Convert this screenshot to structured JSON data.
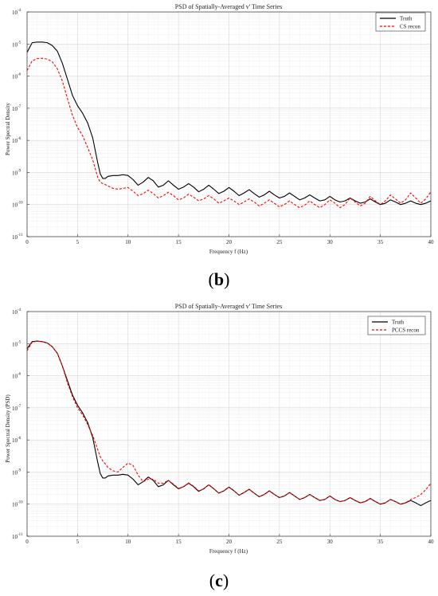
{
  "panels": [
    {
      "panel_label": {
        "open": "(",
        "letter": "b",
        "close": ")"
      },
      "chart_data": {
        "type": "line",
        "title": "PSD of Spatially-Averaged v' Time Series",
        "xlabel": "Frequency f (Hz)",
        "ylabel": "Power Spectral Density",
        "xlim": [
          0,
          40
        ],
        "ylim_log10": [
          -11,
          -4
        ],
        "yscale": "log",
        "grid": true,
        "legend_position": "top-right",
        "x_ticks": [
          "0",
          "5",
          "10",
          "15",
          "20",
          "25",
          "30",
          "35",
          "40"
        ],
        "y_ticks": [
          {
            "base": "10",
            "exp": "-4"
          },
          {
            "base": "10",
            "exp": "-5"
          },
          {
            "base": "10",
            "exp": "-6"
          },
          {
            "base": "10",
            "exp": "-7"
          },
          {
            "base": "10",
            "exp": "-8"
          },
          {
            "base": "10",
            "exp": "-9"
          },
          {
            "base": "10",
            "exp": "-10"
          },
          {
            "base": "10",
            "exp": "-11"
          }
        ],
        "series": [
          {
            "name": "Truth",
            "color": "#000000",
            "style": "solid",
            "x": [
              0,
              0.5,
              1,
              1.5,
              2,
              2.5,
              3,
              3.5,
              4,
              4.5,
              5,
              5.5,
              6,
              6.5,
              7,
              7.25,
              7.5,
              7.75,
              8,
              8.5,
              9,
              9.5,
              10,
              10.5,
              11,
              11.5,
              12,
              12.5,
              13,
              13.5,
              14,
              14.5,
              15,
              15.5,
              16,
              16.5,
              17,
              17.5,
              18,
              18.5,
              19,
              19.5,
              20,
              20.5,
              21,
              21.5,
              22,
              22.5,
              23,
              23.5,
              24,
              24.5,
              25,
              25.5,
              26,
              26.5,
              27,
              27.5,
              28,
              28.5,
              29,
              29.5,
              30,
              30.5,
              31,
              31.5,
              32,
              32.5,
              33,
              33.5,
              34,
              34.5,
              35,
              35.5,
              36,
              36.5,
              37,
              37.5,
              38,
              38.5,
              39,
              39.5,
              40
            ],
            "y": [
              5.5e-06,
              1.1e-05,
              1.15e-05,
              1.15e-05,
              1.1e-05,
              9e-06,
              6e-06,
              2.5e-06,
              8e-07,
              2.5e-07,
              1.2e-07,
              7e-08,
              3.5e-08,
              1.2e-08,
              2e-09,
              9e-10,
              6.5e-10,
              6.5e-10,
              7.5e-10,
              8e-10,
              8e-10,
              8.5e-10,
              8e-10,
              6e-10,
              4e-10,
              5e-10,
              7e-10,
              5.5e-10,
              3.5e-10,
              4e-10,
              5.5e-10,
              4e-10,
              3e-10,
              3.5e-10,
              4.5e-10,
              3.5e-10,
              2.5e-10,
              3e-10,
              4e-10,
              3e-10,
              2.2e-10,
              2.6e-10,
              3.4e-10,
              2.6e-10,
              1.9e-10,
              2.3e-10,
              2.9e-10,
              2.2e-10,
              1.7e-10,
              2e-10,
              2.6e-10,
              2e-10,
              1.6e-10,
              1.8e-10,
              2.3e-10,
              1.8e-10,
              1.4e-10,
              1.6e-10,
              2e-10,
              1.6e-10,
              1.3e-10,
              1.4e-10,
              1.8e-10,
              1.4e-10,
              1.2e-10,
              1.3e-10,
              1.6e-10,
              1.3e-10,
              1.1e-10,
              1.2e-10,
              1.5e-10,
              1.2e-10,
              1e-10,
              1.1e-10,
              1.4e-10,
              1.2e-10,
              1e-10,
              1.1e-10,
              1.3e-10,
              1.1e-10,
              1e-10,
              1.1e-10,
              1.3e-10
            ]
          },
          {
            "name": "CS recon",
            "color": "#ff0000",
            "style": "dashed",
            "x": [
              0,
              0.5,
              1,
              1.5,
              2,
              2.5,
              3,
              3.5,
              4,
              4.5,
              5,
              5.5,
              6,
              6.5,
              7,
              7.25,
              7.5,
              7.75,
              8,
              8.5,
              9,
              9.5,
              10,
              10.5,
              11,
              11.5,
              12,
              12.5,
              13,
              13.5,
              14,
              14.5,
              15,
              15.5,
              16,
              16.5,
              17,
              17.5,
              18,
              18.5,
              19,
              19.5,
              20,
              20.5,
              21,
              21.5,
              22,
              22.5,
              23,
              23.5,
              24,
              24.5,
              25,
              25.5,
              26,
              26.5,
              27,
              27.5,
              28,
              28.5,
              29,
              29.5,
              30,
              30.5,
              31,
              31.5,
              32,
              32.5,
              33,
              33.5,
              34,
              34.5,
              35,
              35.5,
              36,
              36.5,
              37,
              37.5,
              38,
              38.5,
              39,
              39.5,
              40
            ],
            "y": [
              1.5e-06,
              3e-06,
              3.5e-06,
              3.6e-06,
              3.4e-06,
              2.8e-06,
              1.7e-06,
              7e-07,
              2e-07,
              6e-08,
              2.5e-08,
              1.4e-08,
              6e-09,
              2.5e-09,
              7e-10,
              5e-10,
              4.5e-10,
              4.2e-10,
              3.8e-10,
              3.2e-10,
              3e-10,
              3.2e-10,
              3.4e-10,
              2.6e-10,
              1.9e-10,
              2.2e-10,
              2.8e-10,
              2.2e-10,
              1.6e-10,
              1.9e-10,
              2.4e-10,
              1.9e-10,
              1.4e-10,
              1.6e-10,
              2.1e-10,
              1.7e-10,
              1.3e-10,
              1.5e-10,
              1.9e-10,
              1.5e-10,
              1.1e-10,
              1.3e-10,
              1.6e-10,
              1.3e-10,
              1e-10,
              1.2e-10,
              1.5e-10,
              1.2e-10,
              9e-11,
              1.1e-10,
              1.4e-10,
              1.1e-10,
              8.5e-11,
              1e-10,
              1.3e-10,
              1e-10,
              8e-11,
              9.5e-11,
              1.3e-10,
              1e-10,
              8e-11,
              1e-10,
              1.4e-10,
              1.1e-10,
              8e-11,
              1e-10,
              1.6e-10,
              1.2e-10,
              9e-11,
              1.1e-10,
              1.8e-10,
              1.3e-10,
              1e-10,
              1.3e-10,
              2e-10,
              1.5e-10,
              1.1e-10,
              1.4e-10,
              2.3e-10,
              1.6e-10,
              1.1e-10,
              1.5e-10,
              2.5e-10
            ]
          }
        ]
      }
    },
    {
      "panel_label": {
        "open": "(",
        "letter": "c",
        "close": ")"
      },
      "chart_data": {
        "type": "line",
        "title": "PSD of Spatially-Averaged v' Time Series",
        "xlabel": "Frequency f (Hz)",
        "ylabel": "Power Spectral Density (PSD)",
        "xlim": [
          0,
          40
        ],
        "ylim_log10": [
          -11,
          -4
        ],
        "yscale": "log",
        "grid": true,
        "legend_position": "top-right",
        "x_ticks": [
          "0",
          "5",
          "10",
          "15",
          "20",
          "25",
          "30",
          "35",
          "40"
        ],
        "y_ticks": [
          {
            "base": "10",
            "exp": "-4"
          },
          {
            "base": "10",
            "exp": "-5"
          },
          {
            "base": "10",
            "exp": "-6"
          },
          {
            "base": "10",
            "exp": "-7"
          },
          {
            "base": "10",
            "exp": "-8"
          },
          {
            "base": "10",
            "exp": "-9"
          },
          {
            "base": "10",
            "exp": "-10"
          },
          {
            "base": "10",
            "exp": "-11"
          }
        ],
        "series": [
          {
            "name": "Truth",
            "color": "#000000",
            "style": "solid",
            "x": [
              0,
              0.5,
              1,
              1.5,
              2,
              2.5,
              3,
              3.5,
              4,
              4.5,
              5,
              5.5,
              6,
              6.5,
              7,
              7.25,
              7.5,
              7.75,
              8,
              8.5,
              9,
              9.5,
              10,
              10.5,
              11,
              11.5,
              12,
              12.5,
              13,
              13.5,
              14,
              14.5,
              15,
              15.5,
              16,
              16.5,
              17,
              17.5,
              18,
              18.5,
              19,
              19.5,
              20,
              20.5,
              21,
              21.5,
              22,
              22.5,
              23,
              23.5,
              24,
              24.5,
              25,
              25.5,
              26,
              26.5,
              27,
              27.5,
              28,
              28.5,
              29,
              29.5,
              30,
              30.5,
              31,
              31.5,
              32,
              32.5,
              33,
              33.5,
              34,
              34.5,
              35,
              35.5,
              36,
              36.5,
              37,
              37.5,
              38,
              38.5,
              39,
              39.5,
              40
            ],
            "y": [
              7e-06,
              1.15e-05,
              1.2e-05,
              1.15e-05,
              1.05e-05,
              8e-06,
              5e-06,
              2e-06,
              7e-07,
              2.5e-07,
              1.2e-07,
              7e-08,
              3.5e-08,
              1.2e-08,
              2e-09,
              9e-10,
              6.5e-10,
              6.5e-10,
              7.5e-10,
              8e-10,
              8e-10,
              8.5e-10,
              8e-10,
              6e-10,
              4e-10,
              5e-10,
              7e-10,
              5.5e-10,
              3.5e-10,
              4e-10,
              5.5e-10,
              4e-10,
              3e-10,
              3.5e-10,
              4.5e-10,
              3.5e-10,
              2.5e-10,
              3e-10,
              4e-10,
              3e-10,
              2.2e-10,
              2.6e-10,
              3.4e-10,
              2.6e-10,
              1.9e-10,
              2.3e-10,
              2.9e-10,
              2.2e-10,
              1.7e-10,
              2e-10,
              2.6e-10,
              2e-10,
              1.6e-10,
              1.8e-10,
              2.3e-10,
              1.8e-10,
              1.4e-10,
              1.6e-10,
              2e-10,
              1.6e-10,
              1.3e-10,
              1.4e-10,
              1.8e-10,
              1.4e-10,
              1.2e-10,
              1.3e-10,
              1.6e-10,
              1.3e-10,
              1.1e-10,
              1.2e-10,
              1.5e-10,
              1.2e-10,
              1e-10,
              1.1e-10,
              1.4e-10,
              1.2e-10,
              1e-10,
              1.1e-10,
              1.3e-10,
              1.1e-10,
              9e-11,
              1.1e-10,
              1.3e-10
            ]
          },
          {
            "name": "PCCS recon",
            "color": "#ff0000",
            "style": "dashed",
            "x": [
              0,
              0.5,
              1,
              1.5,
              2,
              2.5,
              3,
              3.5,
              4,
              4.5,
              5,
              5.5,
              6,
              6.5,
              7,
              7.25,
              7.5,
              7.75,
              8,
              8.5,
              9,
              9.5,
              10,
              10.5,
              11,
              11.5,
              12,
              12.5,
              13,
              13.5,
              14,
              14.5,
              15,
              15.5,
              16,
              16.5,
              17,
              17.5,
              18,
              18.5,
              19,
              19.5,
              20,
              20.5,
              21,
              21.5,
              22,
              22.5,
              23,
              23.5,
              24,
              24.5,
              25,
              25.5,
              26,
              26.5,
              27,
              27.5,
              28,
              28.5,
              29,
              29.5,
              30,
              30.5,
              31,
              31.5,
              32,
              32.5,
              33,
              33.5,
              34,
              34.5,
              35,
              35.5,
              36,
              36.5,
              37,
              37.5,
              38,
              38.5,
              39,
              39.5,
              40
            ],
            "y": [
              6e-06,
              1.1e-05,
              1.2e-05,
              1.15e-05,
              1.05e-05,
              8e-06,
              5e-06,
              2e-06,
              6e-07,
              2.2e-07,
              1e-07,
              6e-08,
              3e-08,
              1.4e-08,
              5e-09,
              3e-09,
              2.2e-09,
              1.8e-09,
              1.4e-09,
              1.1e-09,
              1e-09,
              1.4e-09,
              1.9e-09,
              1.6e-09,
              8e-10,
              5e-10,
              6e-10,
              6e-10,
              4.5e-10,
              4.5e-10,
              5.5e-10,
              4.2e-10,
              3.1e-10,
              3.5e-10,
              4.6e-10,
              3.6e-10,
              2.6e-10,
              3e-10,
              4e-10,
              3e-10,
              2.2e-10,
              2.6e-10,
              3.4e-10,
              2.6e-10,
              1.9e-10,
              2.3e-10,
              2.9e-10,
              2.2e-10,
              1.7e-10,
              2e-10,
              2.6e-10,
              2e-10,
              1.6e-10,
              1.8e-10,
              2.3e-10,
              1.8e-10,
              1.4e-10,
              1.6e-10,
              2e-10,
              1.6e-10,
              1.3e-10,
              1.4e-10,
              1.8e-10,
              1.4e-10,
              1.2e-10,
              1.3e-10,
              1.6e-10,
              1.3e-10,
              1.1e-10,
              1.2e-10,
              1.5e-10,
              1.2e-10,
              1e-10,
              1.1e-10,
              1.4e-10,
              1.2e-10,
              1e-10,
              1.1e-10,
              1.4e-10,
              1.6e-10,
              2e-10,
              2.8e-10,
              4.5e-10
            ]
          }
        ]
      }
    }
  ]
}
